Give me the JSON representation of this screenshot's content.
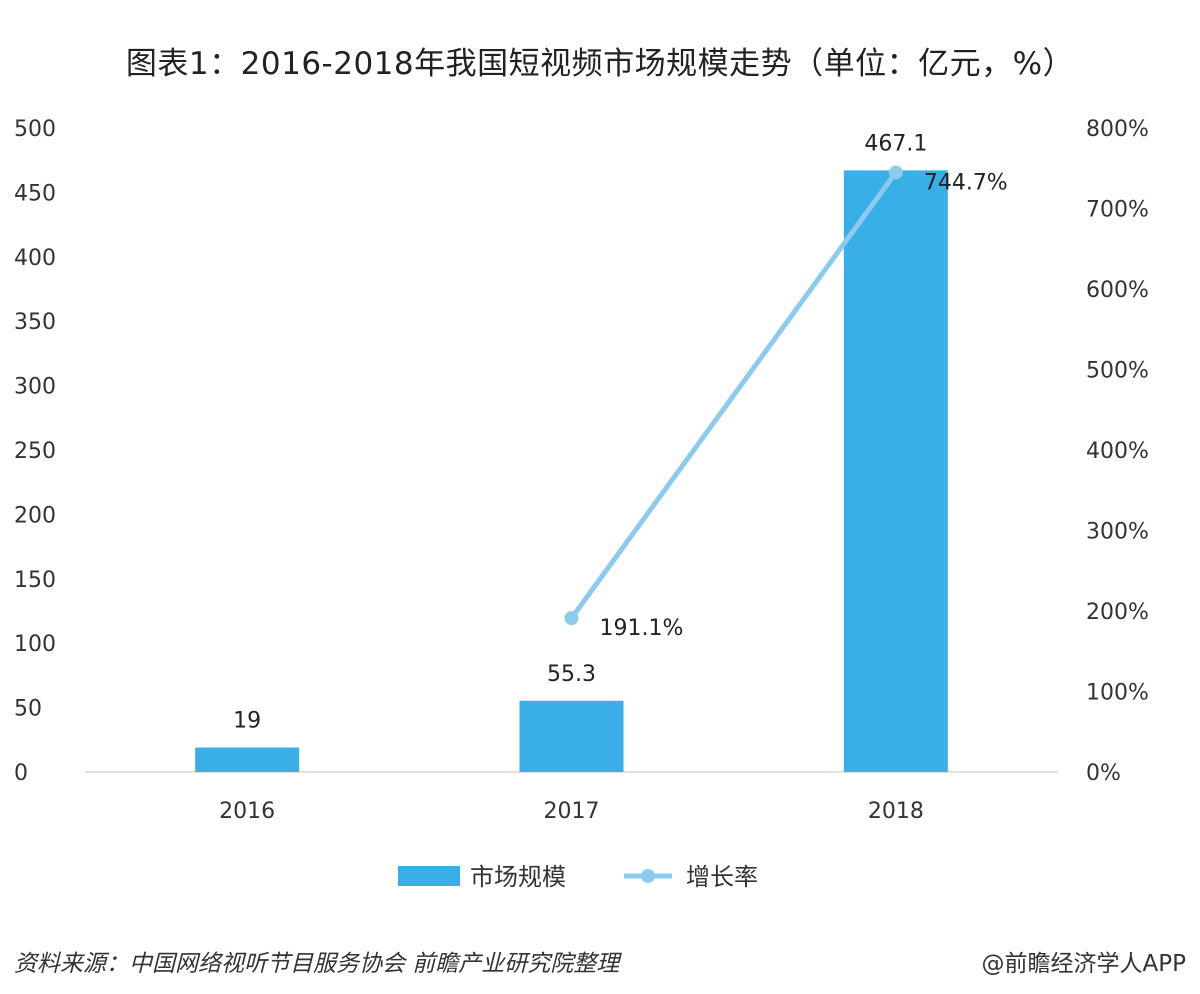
{
  "chart_data": {
    "type": "bar",
    "title": "图表1：2016-2018年我国短视频市场规模走势（单位：亿元，%）",
    "categories": [
      "2016",
      "2017",
      "2018"
    ],
    "series": [
      {
        "name": "市场规模",
        "kind": "bar",
        "axis": "left",
        "color": "#3aaee6",
        "values": [
          19,
          55.3,
          467.1
        ],
        "labels": [
          "19",
          "55.3",
          "467.1"
        ]
      },
      {
        "name": "增长率",
        "kind": "line",
        "axis": "right",
        "color": "#8ccbef",
        "values": [
          null,
          191.1,
          744.7
        ],
        "labels": [
          "",
          "191.1%",
          "744.7%"
        ]
      }
    ],
    "y_left": {
      "min": 0,
      "max": 500,
      "step": 50,
      "ticks": [
        "0",
        "50",
        "100",
        "150",
        "200",
        "250",
        "300",
        "350",
        "400",
        "450",
        "500"
      ]
    },
    "y_right": {
      "min": 0,
      "max": 800,
      "step": 100,
      "ticks": [
        "0%",
        "100%",
        "200%",
        "300%",
        "400%",
        "500%",
        "600%",
        "700%",
        "800%"
      ]
    },
    "grid": false,
    "legend": {
      "position": "bottom",
      "items": [
        "市场规模",
        "增长率"
      ]
    }
  },
  "footer": {
    "source": "资料来源：中国网络视听节目服务协会 前瞻产业研究院整理",
    "credit": "@前瞻经济学人APP"
  }
}
